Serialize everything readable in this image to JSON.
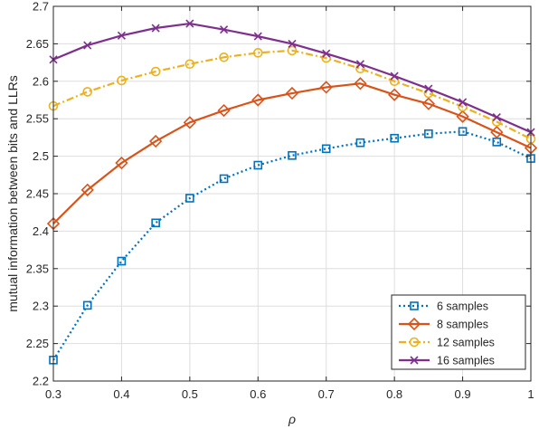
{
  "chart_data": {
    "type": "line",
    "xlabel": "ρ",
    "ylabel": "mutual information between bits and LLRs",
    "xlim": [
      0.3,
      1.0
    ],
    "ylim": [
      2.2,
      2.7
    ],
    "xticks": [
      0.3,
      0.4,
      0.5,
      0.6,
      0.7,
      0.8,
      0.9,
      1
    ],
    "xtick_labels": [
      "0.3",
      "0.4",
      "0.5",
      "0.6",
      "0.7",
      "0.8",
      "0.9",
      "1"
    ],
    "yticks": [
      2.2,
      2.25,
      2.3,
      2.35,
      2.4,
      2.45,
      2.5,
      2.55,
      2.6,
      2.65,
      2.7
    ],
    "ytick_labels": [
      "2.2",
      "2.25",
      "2.3",
      "2.35",
      "2.4",
      "2.45",
      "2.5",
      "2.55",
      "2.6",
      "2.65",
      "2.7"
    ],
    "grid": true,
    "legend_position": "bottom-right",
    "x": [
      0.3,
      0.35,
      0.4,
      0.45,
      0.5,
      0.55,
      0.6,
      0.65,
      0.7,
      0.75,
      0.8,
      0.85,
      0.9,
      0.95,
      1.0
    ],
    "series": [
      {
        "name": "6 samples",
        "color": "#0072BD",
        "line_style": "dotted",
        "marker": "square",
        "values": [
          2.228,
          2.301,
          2.36,
          2.411,
          2.444,
          2.47,
          2.488,
          2.501,
          2.51,
          2.518,
          2.524,
          2.53,
          2.533,
          2.519,
          2.497
        ]
      },
      {
        "name": "8 samples",
        "color": "#D95319",
        "line_style": "solid",
        "marker": "diamond",
        "values": [
          2.41,
          2.455,
          2.491,
          2.52,
          2.545,
          2.561,
          2.575,
          2.584,
          2.592,
          2.597,
          2.582,
          2.57,
          2.553,
          2.532,
          2.511
        ]
      },
      {
        "name": "12 samples",
        "color": "#EDB120",
        "line_style": "dashdot",
        "marker": "circle",
        "values": [
          2.567,
          2.586,
          2.601,
          2.613,
          2.623,
          2.632,
          2.638,
          2.641,
          2.631,
          2.617,
          2.6,
          2.584,
          2.566,
          2.546,
          2.523
        ]
      },
      {
        "name": "16 samples",
        "color": "#7E2F8E",
        "line_style": "solid",
        "marker": "x",
        "values": [
          2.629,
          2.648,
          2.661,
          2.671,
          2.677,
          2.669,
          2.66,
          2.65,
          2.637,
          2.623,
          2.607,
          2.59,
          2.572,
          2.552,
          2.532
        ]
      }
    ]
  }
}
